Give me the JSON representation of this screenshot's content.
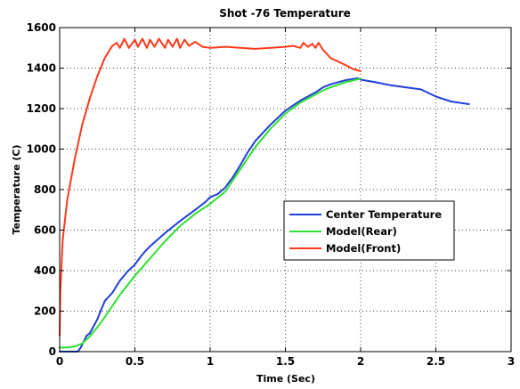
{
  "chart_data": {
    "type": "line",
    "title": "Shot -76  Temperature",
    "xlabel": "Time (Sec)",
    "ylabel": "Temperature (C)",
    "xlim": [
      0,
      3
    ],
    "ylim": [
      0,
      1600
    ],
    "xticks": [
      0,
      0.5,
      1,
      1.5,
      2,
      2.5,
      3
    ],
    "xtick_labels": [
      "0",
      "0.5",
      "1",
      "1.5",
      "2",
      "2.5",
      "3"
    ],
    "yticks": [
      0,
      200,
      400,
      600,
      800,
      1000,
      1200,
      1400,
      1600
    ],
    "ytick_labels": [
      "0",
      "200",
      "400",
      "600",
      "800",
      "1000",
      "1200",
      "1400",
      "1600"
    ],
    "grid": true,
    "legend_position": "center-right",
    "series": [
      {
        "name": "Center Temperature",
        "color": "#1f3fd8",
        "x": [
          0,
          0.12,
          0.14,
          0.18,
          0.2,
          0.25,
          0.3,
          0.35,
          0.4,
          0.45,
          0.5,
          0.55,
          0.6,
          0.7,
          0.8,
          0.9,
          0.97,
          1.0,
          1.05,
          1.1,
          1.15,
          1.2,
          1.25,
          1.3,
          1.4,
          1.5,
          1.55,
          1.6,
          1.65,
          1.7,
          1.75,
          1.8,
          1.9,
          1.98,
          2.0,
          2.1,
          2.2,
          2.3,
          2.4,
          2.5,
          2.6,
          2.72
        ],
        "y": [
          0,
          0,
          20,
          80,
          90,
          160,
          250,
          290,
          350,
          395,
          430,
          480,
          520,
          585,
          645,
          700,
          740,
          762,
          778,
          810,
          860,
          920,
          985,
          1040,
          1120,
          1190,
          1215,
          1240,
          1260,
          1280,
          1305,
          1320,
          1340,
          1350,
          1343,
          1330,
          1315,
          1305,
          1295,
          1260,
          1235,
          1222
        ]
      },
      {
        "name": "Model(Rear)",
        "color": "#2fe02f",
        "x": [
          0,
          0.05,
          0.1,
          0.15,
          0.2,
          0.25,
          0.3,
          0.35,
          0.4,
          0.5,
          0.6,
          0.7,
          0.8,
          0.9,
          1.0,
          1.1,
          1.2,
          1.3,
          1.4,
          1.5,
          1.6,
          1.7,
          1.75,
          1.8,
          1.9,
          2.0
        ],
        "y": [
          20,
          20,
          25,
          40,
          75,
          120,
          170,
          225,
          280,
          375,
          460,
          545,
          620,
          680,
          730,
          790,
          900,
          1010,
          1100,
          1175,
          1230,
          1270,
          1290,
          1305,
          1330,
          1348
        ]
      },
      {
        "name": "Model(Front)",
        "color": "#ff3a1a",
        "x": [
          0,
          0.005,
          0.02,
          0.05,
          0.1,
          0.15,
          0.2,
          0.25,
          0.3,
          0.35,
          0.38,
          0.4,
          0.43,
          0.46,
          0.5,
          0.52,
          0.55,
          0.58,
          0.6,
          0.63,
          0.66,
          0.7,
          0.72,
          0.75,
          0.78,
          0.8,
          0.83,
          0.86,
          0.9,
          0.95,
          1.0,
          1.1,
          1.2,
          1.3,
          1.4,
          1.5,
          1.55,
          1.6,
          1.62,
          1.65,
          1.68,
          1.7,
          1.72,
          1.75,
          1.8,
          1.9,
          1.95,
          2.0
        ],
        "y": [
          80,
          300,
          550,
          750,
          950,
          1120,
          1250,
          1360,
          1450,
          1510,
          1525,
          1500,
          1545,
          1500,
          1540,
          1505,
          1545,
          1500,
          1540,
          1505,
          1545,
          1500,
          1540,
          1505,
          1545,
          1500,
          1540,
          1510,
          1530,
          1505,
          1500,
          1505,
          1500,
          1495,
          1500,
          1505,
          1510,
          1500,
          1525,
          1505,
          1520,
          1500,
          1525,
          1490,
          1450,
          1415,
          1395,
          1385
        ]
      }
    ]
  }
}
